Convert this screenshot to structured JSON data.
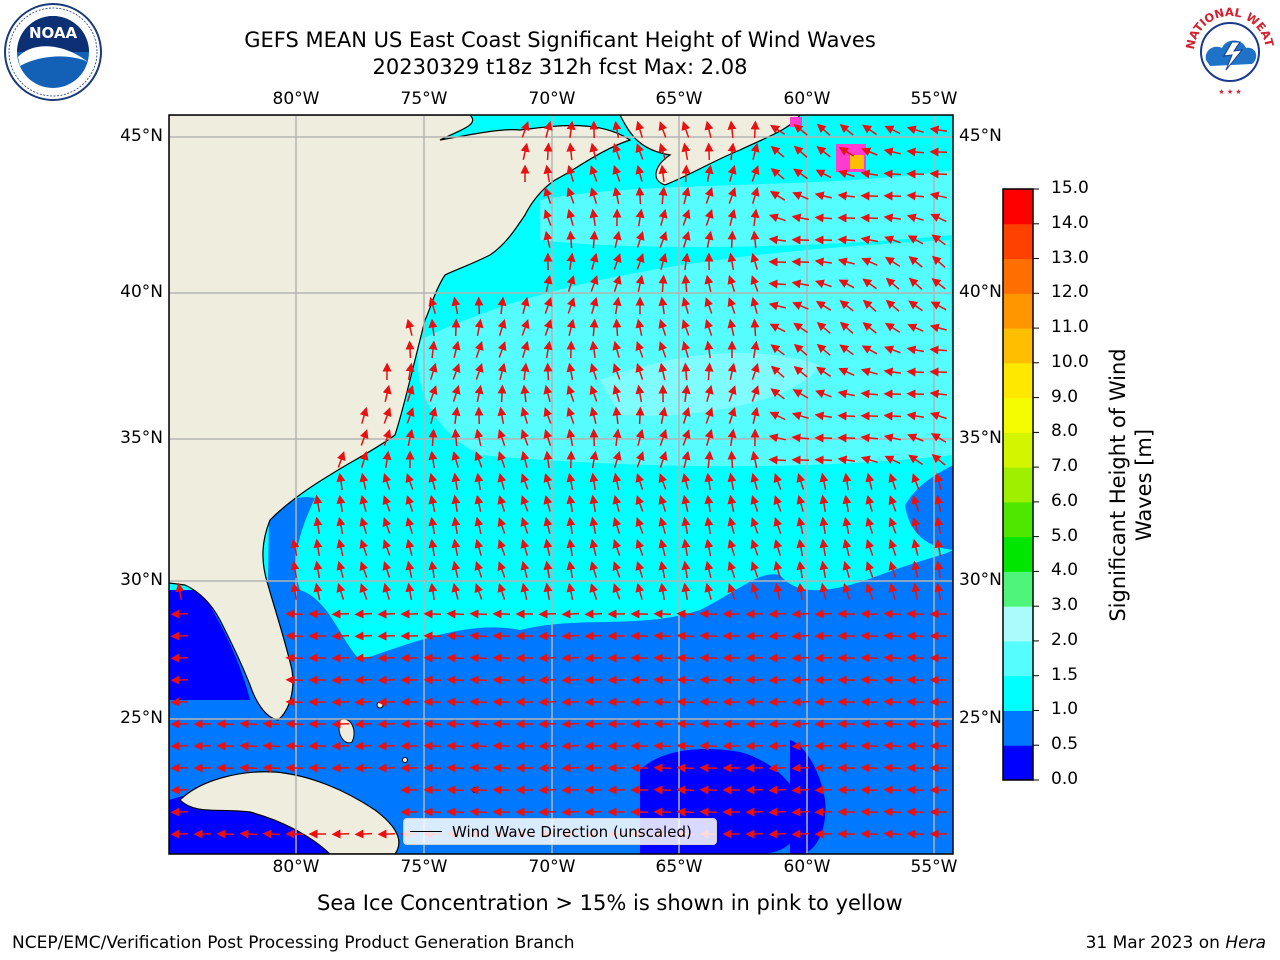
{
  "header": {
    "title_line1": "GEFS MEAN US East Coast Significant Height of Wind Waves",
    "title_line2": "20230329 t18z 312h fcst   Max: 2.08"
  },
  "logos": {
    "noaa_text": "NOAA",
    "nws_text": "NATIONAL WEATHER SERVICE"
  },
  "map": {
    "lon_labels": [
      "80°W",
      "75°W",
      "70°W",
      "65°W",
      "60°W",
      "55°W"
    ],
    "lat_labels": [
      "45°N",
      "40°N",
      "35°N",
      "30°N",
      "25°N"
    ],
    "legend_label": "Wind Wave Direction (unscaled)",
    "colors": {
      "land": "#efedde",
      "ice": "#ff3ccf",
      "arrow": "#e81010",
      "grid": "#b4b4b4"
    }
  },
  "colorbar": {
    "title": "Significant Height of Wind Waves [m]",
    "ticks": [
      "0.0",
      "0.5",
      "1.0",
      "1.5",
      "2.0",
      "3.0",
      "4.0",
      "5.0",
      "6.0",
      "7.0",
      "8.0",
      "9.0",
      "10.0",
      "11.0",
      "12.0",
      "13.0",
      "14.0",
      "15.0"
    ],
    "colors": [
      "#0000ff",
      "#0078ff",
      "#00ffff",
      "#55fdfe",
      "#aafcfc",
      "#4ff57b",
      "#00e600",
      "#4fe600",
      "#9ff000",
      "#d4f500",
      "#f5fb00",
      "#ffe800",
      "#ffbf00",
      "#ff9600",
      "#ff6e00",
      "#ff4100",
      "#ff0000"
    ]
  },
  "notes": {
    "sea_ice": "Sea Ice Concentration > 15% is shown in pink to yellow"
  },
  "footer": {
    "left": "NCEP/EMC/Verification Post Processing Product Generation Branch",
    "right_date": "31 Mar 2023 on ",
    "right_host": "Hera"
  }
}
